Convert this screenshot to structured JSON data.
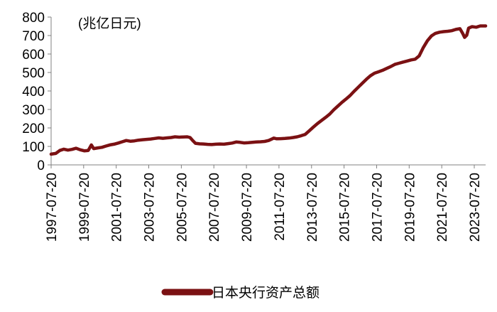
{
  "chart_data": {
    "type": "line",
    "unit_label": "(兆亿日元)",
    "ylim": [
      0,
      800
    ],
    "y_ticks": [
      "0",
      "100",
      "200",
      "300",
      "400",
      "500",
      "600",
      "700",
      "800"
    ],
    "x_ticks": [
      "1997-07-20",
      "1999-07-20",
      "2001-07-20",
      "2003-07-20",
      "2005-07-20",
      "2007-07-20",
      "2009-07-20",
      "2011-07-20",
      "2013-07-20",
      "2015-07-20",
      "2017-07-20",
      "2019-07-20",
      "2021-07-20",
      "2023-07-20"
    ],
    "x_range": [
      "1997-07-20",
      "2024-03-31"
    ],
    "grid": false,
    "legend_position": "bottom",
    "series": [
      {
        "name": "日本央行资产总额",
        "color": "#7b1113",
        "points": [
          [
            "1997-07-20",
            58
          ],
          [
            "1997-11-01",
            62
          ],
          [
            "1998-02-01",
            78
          ],
          [
            "1998-05-01",
            85
          ],
          [
            "1998-08-01",
            80
          ],
          [
            "1998-11-01",
            84
          ],
          [
            "1999-02-01",
            90
          ],
          [
            "1999-05-01",
            82
          ],
          [
            "1999-08-01",
            76
          ],
          [
            "1999-11-01",
            78
          ],
          [
            "2000-01-10",
            108
          ],
          [
            "2000-03-01",
            88
          ],
          [
            "2000-06-01",
            92
          ],
          [
            "2000-09-01",
            95
          ],
          [
            "2000-12-01",
            102
          ],
          [
            "2001-03-01",
            108
          ],
          [
            "2001-06-01",
            112
          ],
          [
            "2001-09-01",
            118
          ],
          [
            "2001-12-01",
            125
          ],
          [
            "2002-03-01",
            132
          ],
          [
            "2002-06-01",
            128
          ],
          [
            "2002-09-01",
            130
          ],
          [
            "2002-12-01",
            134
          ],
          [
            "2003-03-01",
            136
          ],
          [
            "2003-06-01",
            138
          ],
          [
            "2003-09-01",
            140
          ],
          [
            "2003-12-01",
            143
          ],
          [
            "2004-03-01",
            146
          ],
          [
            "2004-06-01",
            144
          ],
          [
            "2004-09-01",
            146
          ],
          [
            "2004-12-01",
            148
          ],
          [
            "2005-03-01",
            152
          ],
          [
            "2005-06-01",
            150
          ],
          [
            "2005-09-01",
            151
          ],
          [
            "2005-12-01",
            152
          ],
          [
            "2006-02-01",
            148
          ],
          [
            "2006-04-01",
            132
          ],
          [
            "2006-06-01",
            117
          ],
          [
            "2006-09-01",
            114
          ],
          [
            "2006-12-01",
            113
          ],
          [
            "2007-03-01",
            111
          ],
          [
            "2007-06-01",
            110
          ],
          [
            "2007-09-01",
            112
          ],
          [
            "2007-12-01",
            113
          ],
          [
            "2008-03-01",
            112
          ],
          [
            "2008-06-01",
            115
          ],
          [
            "2008-09-01",
            118
          ],
          [
            "2008-12-01",
            124
          ],
          [
            "2009-03-01",
            122
          ],
          [
            "2009-06-01",
            119
          ],
          [
            "2009-09-01",
            120
          ],
          [
            "2009-12-01",
            122
          ],
          [
            "2010-03-01",
            124
          ],
          [
            "2010-06-01",
            125
          ],
          [
            "2010-09-01",
            127
          ],
          [
            "2010-12-01",
            132
          ],
          [
            "2011-03-25",
            145
          ],
          [
            "2011-06-01",
            141
          ],
          [
            "2011-09-01",
            142
          ],
          [
            "2011-12-01",
            143
          ],
          [
            "2012-03-01",
            145
          ],
          [
            "2012-06-01",
            148
          ],
          [
            "2012-09-01",
            152
          ],
          [
            "2012-12-01",
            158
          ],
          [
            "2013-03-01",
            165
          ],
          [
            "2013-06-01",
            185
          ],
          [
            "2013-09-01",
            205
          ],
          [
            "2013-12-01",
            224
          ],
          [
            "2014-03-01",
            240
          ],
          [
            "2014-06-01",
            257
          ],
          [
            "2014-09-01",
            275
          ],
          [
            "2014-12-01",
            298
          ],
          [
            "2015-03-01",
            318
          ],
          [
            "2015-06-01",
            338
          ],
          [
            "2015-09-01",
            356
          ],
          [
            "2015-12-01",
            375
          ],
          [
            "2016-03-01",
            398
          ],
          [
            "2016-06-01",
            420
          ],
          [
            "2016-09-01",
            442
          ],
          [
            "2016-12-01",
            463
          ],
          [
            "2017-03-01",
            482
          ],
          [
            "2017-06-01",
            496
          ],
          [
            "2017-09-01",
            504
          ],
          [
            "2017-12-01",
            512
          ],
          [
            "2018-03-01",
            522
          ],
          [
            "2018-06-01",
            532
          ],
          [
            "2018-09-01",
            544
          ],
          [
            "2018-12-01",
            550
          ],
          [
            "2019-03-01",
            556
          ],
          [
            "2019-06-01",
            562
          ],
          [
            "2019-09-01",
            568
          ],
          [
            "2019-12-01",
            572
          ],
          [
            "2020-03-01",
            590
          ],
          [
            "2020-06-01",
            635
          ],
          [
            "2020-09-01",
            672
          ],
          [
            "2020-12-01",
            698
          ],
          [
            "2021-03-01",
            712
          ],
          [
            "2021-06-01",
            718
          ],
          [
            "2021-09-01",
            721
          ],
          [
            "2021-12-01",
            723
          ],
          [
            "2022-03-01",
            726
          ],
          [
            "2022-06-01",
            733
          ],
          [
            "2022-09-01",
            737
          ],
          [
            "2022-11-01",
            712
          ],
          [
            "2022-12-15",
            690
          ],
          [
            "2023-02-01",
            702
          ],
          [
            "2023-03-15",
            740
          ],
          [
            "2023-06-01",
            748
          ],
          [
            "2023-09-01",
            745
          ],
          [
            "2023-12-01",
            752
          ],
          [
            "2024-03-31",
            752
          ]
        ]
      }
    ]
  }
}
